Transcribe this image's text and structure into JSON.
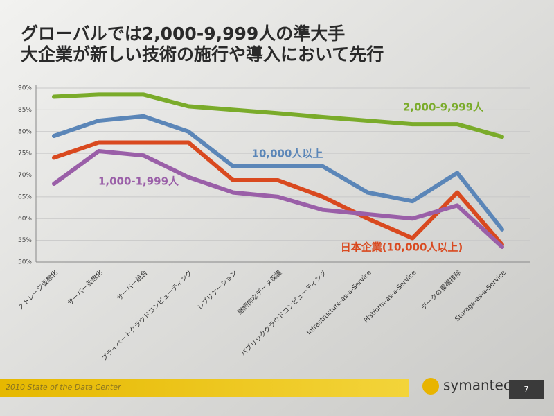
{
  "chart_data": {
    "type": "line",
    "title": [
      "グローバルでは2,000-9,999人の準大手",
      "大企業が新しい技術の施行や導入において先行"
    ],
    "categories": [
      "ストレージ仮想化",
      "サーバー仮想化",
      "サーバー統合",
      "プライベートクラウドコンピューティング",
      "レプリケーション",
      "継続的なデータ保護",
      "パブリッククラウドコンピューティング",
      "Infrastructure-as-a-Service",
      "Platform-as-a-Service",
      "データの重複排除",
      "Storage-as-a-Service"
    ],
    "series": [
      {
        "name": "2,000-9,999人",
        "color": "#7aab2a",
        "values": [
          88,
          88.5,
          88.5,
          85.8,
          85,
          84.2,
          83.3,
          82.5,
          81.7,
          81.7,
          78.8
        ]
      },
      {
        "name": "10,000人以上",
        "color": "#5b86b8",
        "values": [
          79,
          82.5,
          83.5,
          80,
          72,
          72,
          72,
          66,
          64,
          70.5,
          57.5
        ]
      },
      {
        "name": "日本企業(10,000人以上)",
        "color": "#d9491f",
        "values": [
          74,
          77.5,
          77.5,
          77.5,
          68.8,
          68.8,
          65,
          60,
          55.5,
          66,
          54
        ]
      },
      {
        "name": "1,000-1,999人",
        "color": "#9a5fa8",
        "values": [
          68,
          75.5,
          74.5,
          69.5,
          66,
          65,
          62,
          61,
          60,
          63,
          53.5
        ]
      }
    ],
    "ylim": [
      50,
      90
    ],
    "yticks": [
      {
        "value": 50,
        "label": "50%"
      },
      {
        "value": 55,
        "label": "55%"
      },
      {
        "value": 60,
        "label": "60%"
      },
      {
        "value": 65,
        "label": "65%"
      },
      {
        "value": 70,
        "label": "70%"
      },
      {
        "value": 75,
        "label": "75%"
      },
      {
        "value": 80,
        "label": "80%"
      },
      {
        "value": 85,
        "label": "85%"
      },
      {
        "value": 90,
        "label": "90%"
      }
    ],
    "grid": true
  },
  "footer": {
    "caption": "2010 State of the Data Center",
    "brand": "symantec.",
    "page": "7"
  }
}
